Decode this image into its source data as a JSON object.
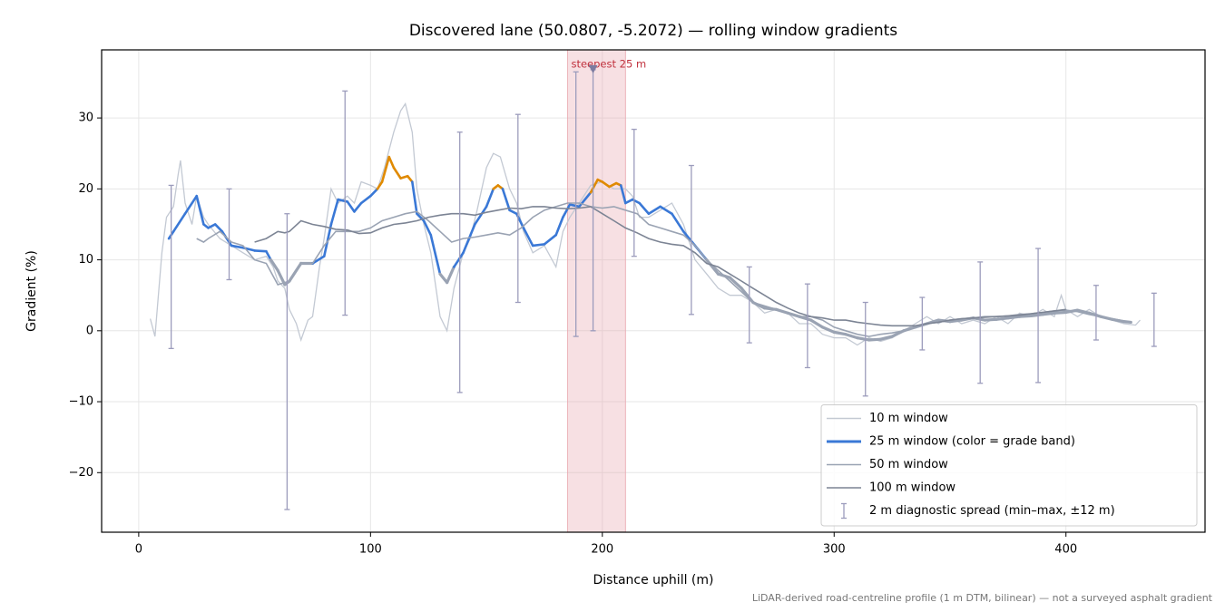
{
  "chart_data": {
    "type": "line",
    "title": "Discovered lane (50.0807, -5.2072) — rolling window gradients",
    "xlabel": "Distance uphill (m)",
    "ylabel": "Gradient (%)",
    "footnote": "LiDAR-derived road-centreline profile (1 m DTM, bilinear) — not a surveyed asphalt gradient",
    "xlim": [
      -16,
      460
    ],
    "ylim": [
      -28.4,
      39.6
    ],
    "xticks": [
      0,
      100,
      200,
      300,
      400
    ],
    "yticks": [
      {
        "value": -20,
        "label": "−20"
      },
      {
        "value": -10,
        "label": "−10"
      },
      0,
      10,
      20,
      30
    ],
    "grid": true,
    "legend": "lower right",
    "grade_bands": [
      {
        "below": 10,
        "color": "#9aa3b3"
      },
      {
        "below": 20,
        "color": "#3a78d6"
      },
      {
        "color": "#e08a00"
      }
    ],
    "series": [
      {
        "name": "10 m window",
        "color": "#c3c9d3",
        "x": [
          5,
          7,
          10,
          12,
          15,
          17,
          18,
          20,
          23,
          25,
          28,
          30,
          35,
          40,
          45,
          50,
          55,
          58,
          60,
          63,
          65,
          68,
          70,
          73,
          75,
          78,
          80,
          83,
          86,
          90,
          93,
          96,
          100,
          103,
          106,
          110,
          113,
          115,
          118,
          120,
          123,
          126,
          130,
          133,
          136,
          140,
          143,
          146,
          150,
          153,
          156,
          160,
          163,
          166,
          170,
          175,
          180,
          183,
          186,
          190,
          195,
          200,
          205,
          210,
          213,
          216,
          220,
          225,
          230,
          235,
          240,
          245,
          250,
          255,
          260,
          265,
          270,
          275,
          280,
          285,
          290,
          295,
          300,
          305,
          310,
          315,
          320,
          325,
          330,
          335,
          340,
          345,
          350,
          355,
          360,
          365,
          370,
          375,
          380,
          385,
          390,
          395,
          398,
          400,
          405,
          410,
          415,
          420,
          425,
          430,
          432
        ],
        "values": [
          1.7,
          -0.8,
          11,
          16,
          17.5,
          22,
          24,
          18,
          15,
          19,
          16,
          15,
          13,
          12,
          11,
          10,
          10.5,
          9,
          7,
          6,
          3,
          1,
          -1.3,
          1.5,
          2,
          9,
          13,
          20,
          18,
          19,
          18,
          21,
          20.5,
          20,
          23,
          28,
          31,
          32,
          28,
          20,
          15,
          11,
          2,
          0,
          6,
          11,
          13,
          17,
          23,
          25,
          24.5,
          20,
          18,
          14,
          11,
          12,
          9,
          14,
          16,
          18,
          20.5,
          21,
          20,
          20,
          19,
          16,
          16,
          17,
          18,
          15,
          10,
          8,
          6,
          5,
          5,
          4,
          2.5,
          3,
          2.5,
          1,
          1,
          -0.5,
          -1,
          -1,
          -2,
          -1,
          -1.5,
          -1,
          0,
          1,
          2,
          1,
          2,
          1,
          1.5,
          1,
          2,
          1,
          2.5,
          2,
          3,
          2,
          5,
          3,
          2,
          3,
          2,
          1.5,
          1,
          0.8,
          1.5
        ]
      },
      {
        "name": "25 m window (color = grade band)",
        "color": "#3a78d6",
        "banded": true,
        "x": [
          13,
          15,
          20,
          25,
          28,
          30,
          33,
          36,
          40,
          45,
          50,
          55,
          57,
          60,
          63,
          65,
          70,
          75,
          80,
          83,
          86,
          90,
          93,
          96,
          100,
          103,
          105,
          108,
          110,
          113,
          116,
          118,
          120,
          123,
          126,
          130,
          133,
          136,
          140,
          145,
          150,
          153,
          155,
          157,
          160,
          163,
          166,
          170,
          175,
          180,
          183,
          186,
          190,
          195,
          198,
          200,
          203,
          206,
          208,
          210,
          213,
          216,
          220,
          225,
          230,
          235,
          240,
          245,
          250,
          255,
          260,
          265,
          270,
          275,
          280,
          285,
          290,
          295,
          300,
          305,
          310,
          315,
          320,
          325,
          330,
          335,
          340,
          345,
          350,
          355,
          360,
          365,
          370,
          375,
          380,
          385,
          390,
          395,
          400,
          405,
          410,
          415,
          420,
          425,
          428
        ],
        "values": [
          13,
          14,
          16.5,
          19,
          15,
          14.5,
          15,
          14,
          12,
          11.7,
          11.3,
          11.2,
          10,
          8.5,
          6.5,
          7,
          9.5,
          9.5,
          10.5,
          15,
          18.5,
          18.2,
          16.8,
          18,
          19,
          20,
          21,
          24.5,
          23,
          21.5,
          21.8,
          21,
          16.5,
          15.5,
          13.5,
          8,
          6.8,
          9,
          11,
          15,
          17.5,
          20,
          20.5,
          20,
          17,
          16.5,
          14.5,
          12,
          12.2,
          13.5,
          16,
          17.8,
          17.5,
          19.5,
          21.3,
          21,
          20.3,
          20.8,
          20.5,
          18,
          18.5,
          18,
          16.5,
          17.5,
          16.5,
          14,
          12,
          10,
          8,
          7.5,
          6,
          4,
          3.2,
          3,
          2.5,
          2,
          1.5,
          0.5,
          -0.2,
          -0.5,
          -1,
          -1.3,
          -1.2,
          -0.8,
          0,
          0.5,
          1,
          1.5,
          1.3,
          1.5,
          1.8,
          1.5,
          1.6,
          1.8,
          2,
          2.1,
          2.3,
          2.5,
          2.6,
          2.9,
          2.5,
          2,
          1.6,
          1.3,
          1.2
        ]
      },
      {
        "name": "50 m window",
        "color": "#9aa3b3",
        "x": [
          25,
          28,
          30,
          35,
          40,
          45,
          50,
          55,
          60,
          65,
          70,
          75,
          80,
          85,
          90,
          95,
          100,
          105,
          110,
          115,
          120,
          125,
          130,
          135,
          140,
          145,
          150,
          155,
          160,
          165,
          170,
          175,
          180,
          185,
          190,
          195,
          200,
          205,
          210,
          215,
          220,
          225,
          230,
          235,
          240,
          245,
          250,
          255,
          260,
          265,
          270,
          275,
          280,
          285,
          290,
          295,
          300,
          305,
          310,
          315,
          320,
          325,
          330,
          335,
          340,
          345,
          350,
          355,
          360,
          365,
          370,
          375,
          380,
          385,
          390,
          395,
          400,
          405,
          410,
          415,
          420,
          425
        ],
        "values": [
          13,
          12.5,
          13,
          14,
          12.5,
          12,
          10,
          9.5,
          6.5,
          7,
          9.5,
          9.5,
          12,
          14,
          14,
          14,
          14.5,
          15.5,
          16,
          16.5,
          16.8,
          15.5,
          14,
          12.5,
          13,
          13.2,
          13.5,
          13.8,
          13.5,
          14.5,
          16,
          17,
          17.5,
          18,
          18,
          17.5,
          17.3,
          17.5,
          17,
          16.5,
          15,
          14.5,
          14,
          13.5,
          12,
          10,
          8.5,
          7,
          5.5,
          4,
          3.5,
          3,
          2.5,
          2,
          2,
          1.5,
          0.5,
          0,
          -0.5,
          -0.8,
          -0.5,
          -0.3,
          0,
          0.5,
          1,
          1.2,
          1.5,
          1.7,
          1.8,
          2,
          2,
          2.1,
          2.3,
          2.4,
          2.6,
          2.8,
          2.9,
          2.7,
          2.3,
          2,
          1.7,
          1.4
        ]
      },
      {
        "name": "100 m window",
        "color": "#7c8494",
        "x": [
          50,
          55,
          60,
          63,
          65,
          70,
          75,
          80,
          85,
          90,
          95,
          100,
          105,
          110,
          115,
          120,
          125,
          130,
          135,
          140,
          145,
          150,
          155,
          160,
          165,
          170,
          175,
          180,
          185,
          190,
          195,
          200,
          205,
          210,
          215,
          220,
          225,
          230,
          235,
          240,
          245,
          250,
          255,
          260,
          265,
          270,
          275,
          280,
          285,
          290,
          295,
          300,
          305,
          310,
          315,
          320,
          325,
          330,
          335,
          340,
          345,
          350,
          355,
          360,
          365,
          370,
          375,
          380,
          385,
          390,
          395,
          400
        ],
        "values": [
          12.5,
          13,
          14,
          13.8,
          14,
          15.5,
          15,
          14.7,
          14.3,
          14.2,
          13.7,
          13.8,
          14.5,
          15,
          15.2,
          15.5,
          16,
          16.3,
          16.5,
          16.5,
          16.3,
          16.7,
          17,
          17.3,
          17.2,
          17.5,
          17.5,
          17.3,
          17.2,
          17.3,
          17.5,
          16.5,
          15.5,
          14.5,
          13.8,
          13,
          12.5,
          12.2,
          12,
          11,
          9.5,
          9,
          8,
          7,
          6,
          5,
          4,
          3.2,
          2.5,
          2,
          1.8,
          1.5,
          1.5,
          1.2,
          1,
          0.8,
          0.7,
          0.7,
          0.7,
          1,
          1.2,
          1.5,
          1.7,
          1.8,
          1.9,
          2,
          2.1,
          2.2,
          2.4,
          2.6,
          2.8,
          3
        ]
      }
    ],
    "spread": {
      "name": "2 m diagnostic spread (min–max, ±12 m)",
      "color": "#9c9cbc",
      "x": [
        14,
        39,
        64,
        89,
        138.5,
        163.6,
        188.6,
        196,
        213.7,
        238.4,
        263.4,
        288.5,
        313.5,
        338,
        363,
        388,
        413,
        438
      ],
      "low": [
        -2.5,
        7.2,
        -25.2,
        2.2,
        -8.7,
        4,
        -0.8,
        0,
        10.5,
        2.3,
        -1.7,
        -5.2,
        -9.2,
        -2.7,
        -7.4,
        -7.3,
        -1.3,
        -2.2
      ],
      "high": [
        20.5,
        20,
        16.5,
        33.8,
        28,
        30.5,
        36.5,
        36.8,
        28.4,
        23.3,
        9,
        6.6,
        4,
        4.7,
        9.7,
        11.6,
        6.4,
        5.3
      ]
    },
    "highlight": {
      "x0": 185,
      "x1": 210,
      "color": "#e8a6ae",
      "label": "steepest 25 m",
      "marker_x": 196,
      "marker_y": 36.8
    }
  }
}
